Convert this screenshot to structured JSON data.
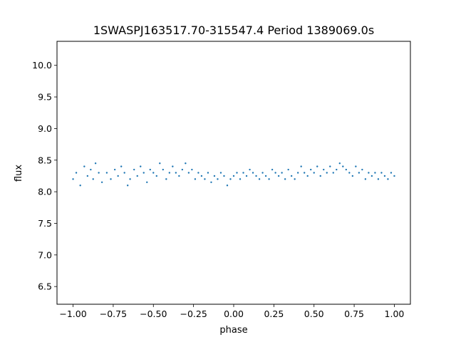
{
  "chart_data": {
    "type": "scatter",
    "title": "1SWASPJ163517.70-315547.4 Period 1389069.0s",
    "xlabel": "phase",
    "ylabel": "flux",
    "xlim": [
      -1.1,
      1.1
    ],
    "ylim": [
      6.22,
      10.38
    ],
    "x_ticks": [
      -1.0,
      -0.75,
      -0.5,
      -0.25,
      0.0,
      0.25,
      0.5,
      0.75,
      1.0
    ],
    "x_tick_labels": [
      "−1.00",
      "−0.75",
      "−0.50",
      "−0.25",
      "0.00",
      "0.25",
      "0.50",
      "0.75",
      "1.00"
    ],
    "y_ticks": [
      6.5,
      7.0,
      7.5,
      8.0,
      8.5,
      9.0,
      9.5,
      10.0
    ],
    "y_tick_labels": [
      "6.5",
      "7.0",
      "7.5",
      "8.0",
      "8.5",
      "9.0",
      "9.5",
      "10.0"
    ],
    "grid": false,
    "marker_color": "#1f77b4",
    "series": [
      {
        "x": [
          -1.0,
          -0.98,
          -0.955,
          -0.93,
          -0.91,
          -0.89,
          -0.875,
          -0.86,
          -0.84,
          -0.82,
          -0.79,
          -0.765,
          -0.74,
          -0.72,
          -0.7,
          -0.68,
          -0.66,
          -0.645,
          -0.62,
          -0.6,
          -0.58,
          -0.56,
          -0.54,
          -0.52,
          -0.5,
          -0.48,
          -0.46,
          -0.44,
          -0.42,
          -0.4,
          -0.38,
          -0.36,
          -0.34,
          -0.32,
          -0.3,
          -0.28,
          -0.26,
          -0.24,
          -0.22,
          -0.2,
          -0.18,
          -0.16,
          -0.14,
          -0.12,
          -0.1,
          -0.08,
          -0.06,
          -0.04,
          -0.02,
          0.0,
          0.02,
          0.04,
          0.06,
          0.08,
          0.1,
          0.12,
          0.14,
          0.16,
          0.18,
          0.2,
          0.22,
          0.24,
          0.26,
          0.28,
          0.3,
          0.32,
          0.34,
          0.36,
          0.38,
          0.4,
          0.42,
          0.44,
          0.46,
          0.48,
          0.5,
          0.52,
          0.54,
          0.56,
          0.58,
          0.6,
          0.62,
          0.64,
          0.66,
          0.68,
          0.7,
          0.72,
          0.74,
          0.76,
          0.78,
          0.8,
          0.82,
          0.84,
          0.86,
          0.88,
          0.9,
          0.92,
          0.94,
          0.96,
          0.98,
          1.0
        ],
        "y": [
          8.2,
          8.3,
          8.1,
          8.4,
          8.25,
          8.35,
          8.2,
          8.45,
          8.3,
          8.15,
          8.3,
          8.2,
          8.35,
          8.25,
          8.4,
          8.3,
          8.1,
          8.2,
          8.35,
          8.25,
          8.4,
          8.3,
          8.15,
          8.35,
          8.3,
          8.25,
          8.45,
          8.35,
          8.2,
          8.3,
          8.4,
          8.3,
          8.25,
          8.35,
          8.45,
          8.3,
          8.35,
          8.2,
          8.3,
          8.25,
          8.2,
          8.3,
          8.15,
          8.25,
          8.2,
          8.3,
          8.25,
          8.1,
          8.2,
          8.25,
          8.3,
          8.2,
          8.3,
          8.25,
          8.35,
          8.3,
          8.25,
          8.2,
          8.3,
          8.25,
          8.2,
          8.35,
          8.3,
          8.25,
          8.3,
          8.2,
          8.35,
          8.25,
          8.2,
          8.3,
          8.4,
          8.3,
          8.25,
          8.35,
          8.3,
          8.4,
          8.25,
          8.35,
          8.3,
          8.4,
          8.3,
          8.35,
          8.45,
          8.4,
          8.35,
          8.3,
          8.25,
          8.4,
          8.3,
          8.35,
          8.2,
          8.3,
          8.25,
          8.3,
          8.2,
          8.3,
          8.25,
          8.2,
          8.3,
          8.25
        ]
      }
    ]
  }
}
